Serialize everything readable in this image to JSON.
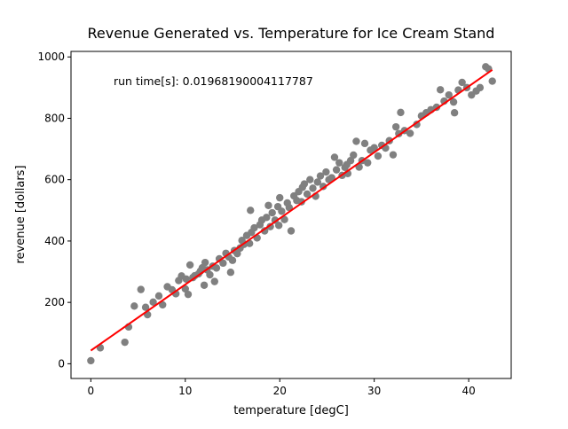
{
  "chart_data": {
    "type": "scatter",
    "title": "Revenue Generated vs. Temperature for Ice Cream Stand",
    "xlabel": "temperature [degC]",
    "ylabel": "revenue [dollars]",
    "xlim": [
      -2.1,
      44.5
    ],
    "ylim": [
      -48,
      1018
    ],
    "xticks": [
      0,
      10,
      20,
      30,
      40
    ],
    "yticks": [
      0,
      200,
      400,
      600,
      800,
      1000
    ],
    "annotation": "run time[s]: 0.01968190004117787",
    "grid": false,
    "colors": {
      "points": "#808080",
      "fit_line": "#ff0000"
    },
    "series": [
      {
        "type": "scatter",
        "points": [
          [
            0.0,
            10
          ],
          [
            1.0,
            52
          ],
          [
            3.6,
            70
          ],
          [
            4.0,
            120
          ],
          [
            4.6,
            188
          ],
          [
            5.3,
            242
          ],
          [
            5.8,
            184
          ],
          [
            6.0,
            160
          ],
          [
            6.6,
            201
          ],
          [
            7.2,
            221
          ],
          [
            7.6,
            192
          ],
          [
            8.1,
            251
          ],
          [
            8.6,
            241
          ],
          [
            9.0,
            228
          ],
          [
            9.3,
            271
          ],
          [
            9.6,
            286
          ],
          [
            10.1,
            276
          ],
          [
            10.5,
            322
          ],
          [
            10.0,
            244
          ],
          [
            10.3,
            226
          ],
          [
            10.8,
            281
          ],
          [
            11.0,
            287
          ],
          [
            11.4,
            293
          ],
          [
            11.8,
            313
          ],
          [
            12.1,
            330
          ],
          [
            12.3,
            306
          ],
          [
            12.6,
            290
          ],
          [
            12.9,
            318
          ],
          [
            13.3,
            312
          ],
          [
            13.6,
            342
          ],
          [
            13.1,
            268
          ],
          [
            12.0,
            256
          ],
          [
            11.6,
            302
          ],
          [
            14.0,
            328
          ],
          [
            14.3,
            360
          ],
          [
            14.6,
            348
          ],
          [
            14.8,
            298
          ],
          [
            15.0,
            337
          ],
          [
            15.2,
            369
          ],
          [
            15.5,
            359
          ],
          [
            15.8,
            377
          ],
          [
            16.0,
            402
          ],
          [
            16.2,
            389
          ],
          [
            16.5,
            418
          ],
          [
            16.8,
            392
          ],
          [
            17.0,
            428
          ],
          [
            17.3,
            443
          ],
          [
            17.6,
            410
          ],
          [
            17.9,
            453
          ],
          [
            18.1,
            468
          ],
          [
            18.4,
            433
          ],
          [
            18.6,
            477
          ],
          [
            18.8,
            516
          ],
          [
            19.0,
            447
          ],
          [
            19.2,
            492
          ],
          [
            19.5,
            468
          ],
          [
            19.8,
            512
          ],
          [
            20.0,
            541
          ],
          [
            20.2,
            497
          ],
          [
            20.5,
            470
          ],
          [
            20.8,
            524
          ],
          [
            21.0,
            509
          ],
          [
            21.2,
            433
          ],
          [
            21.5,
            547
          ],
          [
            21.8,
            532
          ],
          [
            22.0,
            561
          ],
          [
            22.3,
            528
          ],
          [
            22.6,
            586
          ],
          [
            22.9,
            553
          ],
          [
            23.2,
            600
          ],
          [
            23.5,
            572
          ],
          [
            23.8,
            546
          ],
          [
            24.0,
            592
          ],
          [
            24.3,
            612
          ],
          [
            24.6,
            578
          ],
          [
            24.9,
            625
          ],
          [
            25.2,
            600
          ],
          [
            25.5,
            606
          ],
          [
            25.8,
            673
          ],
          [
            26.0,
            632
          ],
          [
            26.3,
            655
          ],
          [
            26.6,
            614
          ],
          [
            26.9,
            640
          ],
          [
            27.2,
            620
          ],
          [
            27.5,
            662
          ],
          [
            27.8,
            680
          ],
          [
            28.1,
            725
          ],
          [
            28.4,
            641
          ],
          [
            28.7,
            662
          ],
          [
            29.0,
            718
          ],
          [
            29.3,
            655
          ],
          [
            29.6,
            696
          ],
          [
            30.0,
            704
          ],
          [
            30.4,
            677
          ],
          [
            30.8,
            712
          ],
          [
            31.2,
            703
          ],
          [
            31.6,
            727
          ],
          [
            32.0,
            681
          ],
          [
            32.3,
            772
          ],
          [
            32.6,
            750
          ],
          [
            32.8,
            819
          ],
          [
            33.2,
            760
          ],
          [
            33.8,
            751
          ],
          [
            34.5,
            780
          ],
          [
            35.0,
            808
          ],
          [
            35.5,
            818
          ],
          [
            36.0,
            828
          ],
          [
            36.6,
            836
          ],
          [
            37.0,
            893
          ],
          [
            37.4,
            856
          ],
          [
            37.9,
            876
          ],
          [
            38.4,
            853
          ],
          [
            38.5,
            818
          ],
          [
            38.9,
            892
          ],
          [
            39.3,
            917
          ],
          [
            39.8,
            900
          ],
          [
            40.3,
            876
          ],
          [
            40.8,
            889
          ],
          [
            41.2,
            900
          ],
          [
            41.8,
            968
          ],
          [
            42.1,
            961
          ],
          [
            42.5,
            921
          ],
          [
            16.9,
            500
          ],
          [
            19.9,
            451
          ],
          [
            22.4,
            575
          ],
          [
            27.1,
            649
          ]
        ]
      },
      {
        "type": "line",
        "points": [
          [
            0.0,
            43
          ],
          [
            42.5,
            958
          ]
        ]
      }
    ]
  }
}
